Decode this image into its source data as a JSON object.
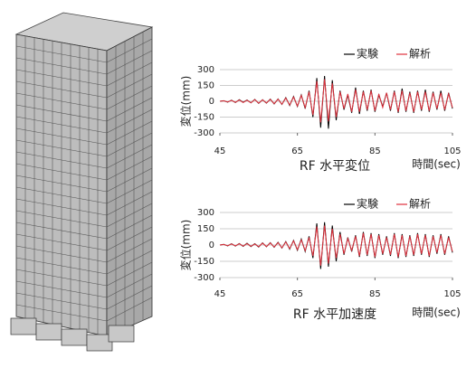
{
  "chart_data": [
    {
      "type": "line",
      "title": "RF 水平変位",
      "x_label": "時間(sec)",
      "y_label": "変位(mm)",
      "xlim": [
        45,
        105
      ],
      "xticks": [
        45,
        65,
        85,
        105
      ],
      "ylim": [
        -300,
        300
      ],
      "yticks": [
        300,
        150,
        0,
        -150,
        -300
      ],
      "grid": true,
      "x": [
        45,
        46,
        47,
        48,
        49,
        50,
        51,
        52,
        53,
        54,
        55,
        56,
        57,
        58,
        59,
        60,
        61,
        62,
        63,
        64,
        65,
        66,
        67,
        68,
        69,
        70,
        71,
        72,
        73,
        74,
        75,
        76,
        77,
        78,
        79,
        80,
        81,
        82,
        83,
        84,
        85,
        86,
        87,
        88,
        89,
        90,
        91,
        92,
        93,
        94,
        95,
        96,
        97,
        98,
        99,
        100,
        101,
        102,
        103,
        104,
        105
      ],
      "series": [
        {
          "name": "実験",
          "color": "#000000",
          "values": [
            0,
            5,
            -8,
            10,
            -12,
            15,
            -10,
            12,
            -15,
            18,
            -20,
            15,
            -18,
            20,
            -25,
            22,
            -30,
            35,
            -40,
            45,
            -50,
            60,
            -70,
            100,
            -150,
            220,
            -250,
            240,
            -260,
            200,
            -180,
            100,
            -80,
            60,
            -110,
            130,
            -120,
            100,
            -90,
            110,
            -100,
            60,
            -50,
            80,
            -90,
            100,
            -110,
            120,
            -100,
            90,
            -110,
            100,
            -90,
            110,
            -100,
            90,
            -80,
            100,
            -90,
            80,
            -70
          ]
        },
        {
          "name": "解析",
          "color": "#e0303c",
          "values": [
            0,
            4,
            -6,
            8,
            -10,
            12,
            -12,
            10,
            -14,
            16,
            -18,
            14,
            -16,
            18,
            -22,
            20,
            -28,
            30,
            -35,
            40,
            -45,
            55,
            -60,
            90,
            -130,
            190,
            -200,
            210,
            -190,
            170,
            -150,
            90,
            -70,
            70,
            -100,
            110,
            -100,
            90,
            -80,
            100,
            -90,
            70,
            -60,
            80,
            -80,
            90,
            -100,
            100,
            -90,
            80,
            -100,
            90,
            -80,
            90,
            -90,
            80,
            -70,
            80,
            -80,
            70,
            -60
          ]
        }
      ]
    },
    {
      "type": "line",
      "title": "RF 水平加速度",
      "x_label": "時間(sec)",
      "y_label": "変位(mm)",
      "xlim": [
        45,
        105
      ],
      "xticks": [
        45,
        65,
        85,
        105
      ],
      "ylim": [
        -300,
        300
      ],
      "yticks": [
        300,
        150,
        0,
        -150,
        -300
      ],
      "grid": true,
      "x": [
        45,
        46,
        47,
        48,
        49,
        50,
        51,
        52,
        53,
        54,
        55,
        56,
        57,
        58,
        59,
        60,
        61,
        62,
        63,
        64,
        65,
        66,
        67,
        68,
        69,
        70,
        71,
        72,
        73,
        74,
        75,
        76,
        77,
        78,
        79,
        80,
        81,
        82,
        83,
        84,
        85,
        86,
        87,
        88,
        89,
        90,
        91,
        92,
        93,
        94,
        95,
        96,
        97,
        98,
        99,
        100,
        101,
        102,
        103,
        104,
        105
      ],
      "series": [
        {
          "name": "実験",
          "color": "#000000",
          "values": [
            0,
            6,
            -8,
            12,
            -10,
            14,
            -12,
            16,
            -14,
            12,
            -18,
            20,
            -16,
            22,
            -20,
            25,
            -28,
            32,
            -38,
            42,
            -48,
            55,
            -60,
            80,
            -120,
            200,
            -220,
            210,
            -200,
            180,
            -150,
            120,
            -90,
            70,
            -60,
            90,
            -110,
            120,
            -100,
            110,
            -120,
            100,
            -90,
            80,
            -100,
            110,
            -120,
            100,
            -110,
            90,
            -100,
            110,
            -90,
            100,
            -110,
            90,
            -80,
            100,
            -90,
            80,
            -70
          ]
        },
        {
          "name": "解析",
          "color": "#e0303c",
          "values": [
            0,
            5,
            -6,
            10,
            -8,
            12,
            -10,
            13,
            -12,
            10,
            -15,
            17,
            -14,
            19,
            -18,
            22,
            -25,
            28,
            -33,
            38,
            -42,
            48,
            -52,
            70,
            -100,
            170,
            -190,
            180,
            -170,
            150,
            -120,
            100,
            -80,
            60,
            -50,
            80,
            -100,
            110,
            -90,
            100,
            -110,
            90,
            -80,
            70,
            -90,
            100,
            -110,
            90,
            -100,
            80,
            -90,
            100,
            -80,
            90,
            -100,
            80,
            -70,
            90,
            -80,
            70,
            -60
          ]
        }
      ]
    }
  ]
}
